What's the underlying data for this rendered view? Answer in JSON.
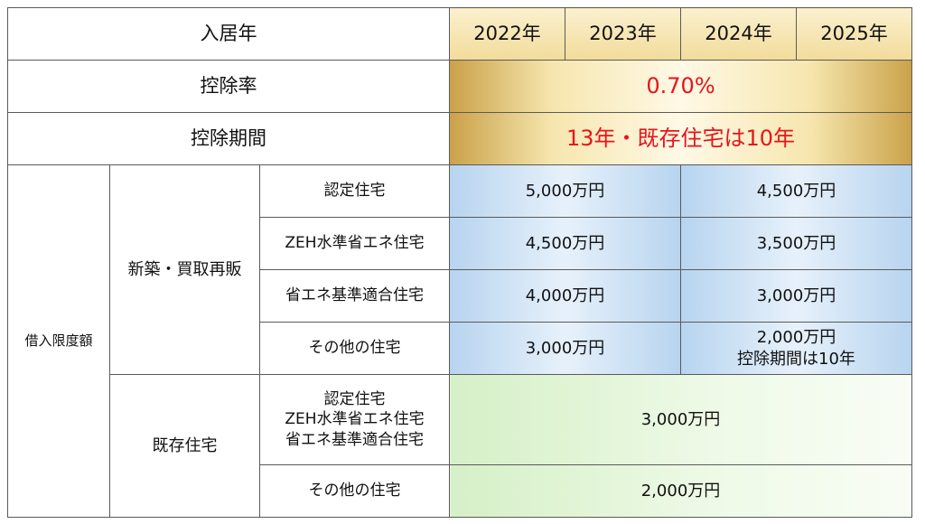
{
  "header": {
    "label": "入居年",
    "years": [
      "2022年",
      "2023年",
      "2024年",
      "2025年"
    ]
  },
  "deduction_rate": {
    "label": "控除率",
    "value": "0.70%"
  },
  "deduction_period": {
    "label": "控除期間",
    "value": "13年・既存住宅は10年"
  },
  "borrowing_limit": {
    "label": "借入限度額",
    "new_build": {
      "label": "新築・買取再販",
      "rows": [
        {
          "type": "認定住宅",
          "y2022_2023": "5,000万円",
          "y2024_2025": "4,500万円",
          "note": ""
        },
        {
          "type": "ZEH水準省エネ住宅",
          "y2022_2023": "4,500万円",
          "y2024_2025": "3,500万円",
          "note": ""
        },
        {
          "type": "省エネ基準適合住宅",
          "y2022_2023": "4,000万円",
          "y2024_2025": "3,000万円",
          "note": ""
        },
        {
          "type": "その他の住宅",
          "y2022_2023": "3,000万円",
          "y2024_2025": "2,000万円",
          "note": "控除期間は10年"
        }
      ]
    },
    "existing": {
      "label": "既存住宅",
      "rows": [
        {
          "types": [
            "認定住宅",
            "ZEH水準省エネ住宅",
            "省エネ基準適合住宅"
          ],
          "value": "3,000万円"
        },
        {
          "types": [
            "その他の住宅"
          ],
          "value": "2,000万円"
        }
      ]
    }
  }
}
